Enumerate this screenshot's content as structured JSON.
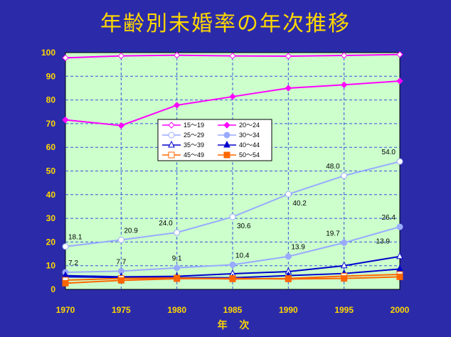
{
  "chart_data": {
    "type": "line",
    "title": "年齢別未婚率の年次推移",
    "xlabel": "年 次",
    "ylabel": "",
    "x": [
      1970,
      1975,
      1980,
      1985,
      1990,
      1995,
      2000
    ],
    "ylim": [
      0,
      100
    ],
    "yticks": [
      0,
      10,
      20,
      30,
      40,
      50,
      60,
      70,
      80,
      90,
      100
    ],
    "grid": true,
    "plot_background": "#ccffcc",
    "legend_position": "center-left",
    "series": [
      {
        "name": "15～19",
        "color": "#ff00ff",
        "marker": "diamond-open",
        "values": [
          97.8,
          98.6,
          98.9,
          98.6,
          98.5,
          98.8,
          99.2
        ]
      },
      {
        "name": "20～24",
        "color": "#ff00ff",
        "marker": "diamond-filled",
        "values": [
          71.6,
          69.2,
          77.8,
          81.4,
          85.0,
          86.4,
          88.0
        ]
      },
      {
        "name": "25～29",
        "color": "#99aaff",
        "marker": "circle-open",
        "values": [
          18.1,
          20.9,
          24.0,
          30.6,
          40.2,
          48.0,
          54.0
        ]
      },
      {
        "name": "30～34",
        "color": "#99aaff",
        "marker": "circle-filled",
        "values": [
          7.2,
          7.7,
          9.1,
          10.4,
          13.9,
          19.7,
          26.4
        ]
      },
      {
        "name": "35～39",
        "color": "#0000cc",
        "marker": "triangle-open",
        "values": [
          5.8,
          5.3,
          5.5,
          6.6,
          7.5,
          10.0,
          13.9
        ]
      },
      {
        "name": "40～44",
        "color": "#0000cc",
        "marker": "triangle-filled",
        "values": [
          5.3,
          5.0,
          4.9,
          4.9,
          5.8,
          6.7,
          8.6
        ]
      },
      {
        "name": "45～49",
        "color": "#ff6600",
        "marker": "square-open",
        "values": [
          3.9,
          4.6,
          4.8,
          4.4,
          4.6,
          5.6,
          6.3
        ]
      },
      {
        "name": "50～54",
        "color": "#ff6600",
        "marker": "square-filled",
        "values": [
          2.6,
          3.8,
          4.5,
          4.6,
          4.4,
          4.6,
          5.3
        ]
      }
    ],
    "data_labels": [
      {
        "text": "18.1",
        "x": 1970,
        "y": 18.1,
        "pos": "above-right"
      },
      {
        "text": "20.9",
        "x": 1975,
        "y": 20.9,
        "pos": "above-right"
      },
      {
        "text": "24.0",
        "x": 1980,
        "y": 24.0,
        "pos": "above-left"
      },
      {
        "text": "30.6",
        "x": 1985,
        "y": 30.6,
        "pos": "below-right"
      },
      {
        "text": "40.2",
        "x": 1990,
        "y": 40.2,
        "pos": "below-right"
      },
      {
        "text": "48.0",
        "x": 1995,
        "y": 48.0,
        "pos": "above-left"
      },
      {
        "text": "54.0",
        "x": 2000,
        "y": 54.0,
        "pos": "above-left"
      },
      {
        "text": "7.2",
        "x": 1970,
        "y": 7.2,
        "pos": "above-right"
      },
      {
        "text": "7.7",
        "x": 1975,
        "y": 7.7,
        "pos": "above"
      },
      {
        "text": "9.1",
        "x": 1980,
        "y": 9.1,
        "pos": "above"
      },
      {
        "text": "10.4",
        "x": 1985,
        "y": 10.4,
        "pos": "above-right"
      },
      {
        "text": "13.9",
        "x": 1990,
        "y": 13.9,
        "pos": "above-right"
      },
      {
        "text": "19.7",
        "x": 1995,
        "y": 19.7,
        "pos": "above-left"
      },
      {
        "text": "26.4",
        "x": 2000,
        "y": 26.4,
        "pos": "above-left"
      },
      {
        "text": "13.9",
        "x": 2000,
        "y": 13.9,
        "pos": "above-left-far"
      }
    ]
  }
}
